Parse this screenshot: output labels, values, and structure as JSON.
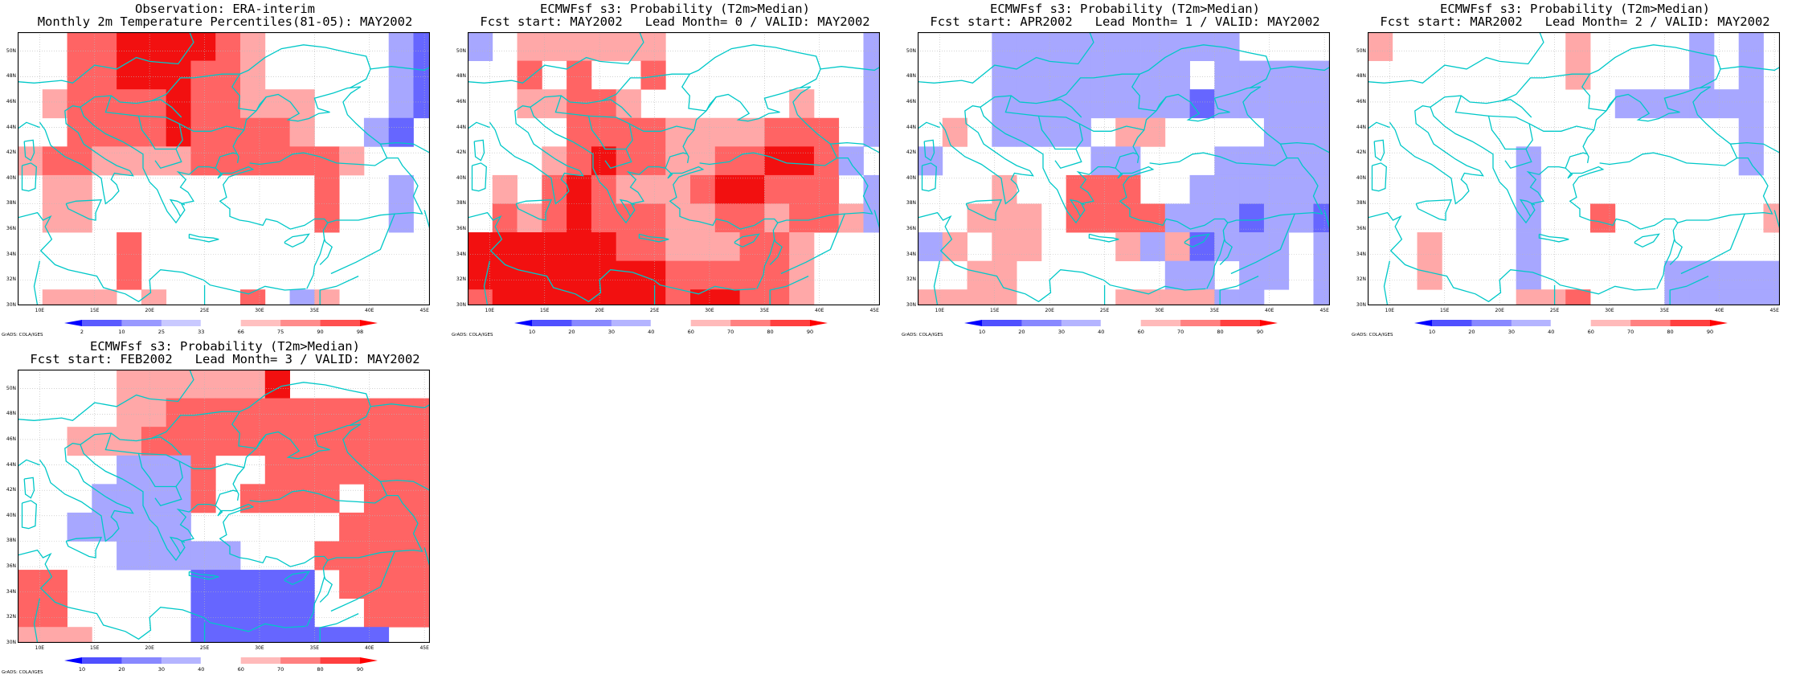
{
  "panels": [
    {
      "title1": "Observation: ERA-interim",
      "title2": "Monthly 2m Temperature Percentiles(81-05): MAY2002",
      "colorbar_labels": [
        "2",
        "10",
        "25",
        "33",
        "66",
        "75",
        "90",
        "98"
      ],
      "colorbar_colors": [
        "#0000ff",
        "#5a5aff",
        "#9999ff",
        "#c9c9ff",
        "#ffffff",
        "#ffc0c0",
        "#ff8c8c",
        "#ff5050",
        "#ff0000"
      ],
      "credit": "GrADS: COLA/IGES",
      "grid_rows": [
        "..rrRRRRrp.....bB",
        "..rrRRRrrp.....bB",
        ".prrrrRrrppp...bB",
        "..rrrrRrrrrp..bB.",
        "prrpppprrrrrrp...",
        ".pp.........r..b.",
        ".pp.........r..b.",
        "....r............",
        "....r............",
        ".ppp.p...r.bp....",
        ".ppp.p...pp......",
        ".rrrrr..rrrrp....",
        "..rrrr..rrrrp....",
        "pppppr...p.B.....",
        "........pp.......",
        "...........bB...."
      ]
    },
    {
      "title1": "ECMWFsf s3: Probability (T2m>Median)",
      "title2": "Fcst start: MAY2002   Lead Month= 0 / VALID: MAY2002",
      "colorbar_labels": [
        "10",
        "20",
        "30",
        "40",
        "60",
        "70",
        "80",
        "90"
      ],
      "colorbar_colors": [
        "#0000ff",
        "#5050ff",
        "#8888ff",
        "#b4b4ff",
        "#ffffff",
        "#ffbaba",
        "#ff8080",
        "#ff4040",
        "#ff0000"
      ],
      "credit": "GrADS: COLA/IGES",
      "grid_rows": [
        "b.pppppp........b",
        "..r.r..r........b",
        "..pprrp......p..b",
        "....rrrrpppprrr.b",
        "...prRrrpprrRRrb.",
        ".p.rRrppprRRrrr.b",
        ".rprRrrrpprrprrpb",
        "RRRRRRrrppprrp...",
        "RRRRRRRRrrrrrp...",
        "rRRRRRRRrRRrrp...",
        ".RRRRRRRRRrpp....",
        ".rRRRRRRRRRrrp...",
        "..RRRRRRRRRrrpp.b",
        "..pRRRRRRRRRr...b",
        "..rrpRRRRRRRrp...",
        "..........rr....."
      ]
    },
    {
      "title1": "ECMWFsf s3: Probability (T2m>Median)",
      "title2": "Fcst start: APR2002   Lead Month= 1 / VALID: MAY2002",
      "colorbar_labels": [
        "10",
        "20",
        "30",
        "40",
        "60",
        "70",
        "80",
        "90"
      ],
      "colorbar_colors": [
        "#0000ff",
        "#5050ff",
        "#8888ff",
        "#b4b4ff",
        "#ffffff",
        "#ffbaba",
        "#ff8080",
        "#ff4040",
        "#ff0000"
      ],
      "credit": "GrADS: COLA/IGES",
      "grid_rows": [
        "...bbbbbbbbbb....",
        "...bbbbbbbb.bbbbb",
        "...bbbbbbbbBbbbbb",
        ".p.bbbb.pp....bbb",
        "b......bb...bbbbb",
        "...p..rrr..bbbbbb",
        "..ppp.rrrrbbbBbbB",
        "bp.pp...pbpBbbb.b",
        "..pp......bb.bb.b",
        "pppp....ppppbb..b",
        ".ppppp..pppp....b",
        ".prrrrpppppp.b..b",
        ".prrrrppprrrp...b",
        ".prRRrrpppppp.b..",
        ".prRRRrppppppp.b.",
        "..rrrrrppppppp.bb"
      ]
    },
    {
      "title1": "ECMWFsf s3: Probability (T2m>Median)",
      "title2": "Fcst start: MAR2002   Lead Month= 2 / VALID: MAY2002",
      "colorbar_labels": [
        "10",
        "20",
        "30",
        "40",
        "60",
        "70",
        "80",
        "90"
      ],
      "colorbar_colors": [
        "#0000ff",
        "#5050ff",
        "#8888ff",
        "#b4b4ff",
        "#ffffff",
        "#ffbaba",
        "#ff8080",
        "#ff4040",
        "#ff0000"
      ],
      "credit": "GrADS: COLA/IGES",
      "grid_rows": [
        "p.......p....b.b.",
        "........p....b.b.",
        "..........bbbbbb.",
        "...............b.",
        "......b........b.",
        "......b..........",
        "......b..r......p",
        "..p...b..........",
        "..p...b.....bbbbb",
        "......ppr...bbbbb",
        "....pprr....bbbbb",
        ".b.bprrprrrrr....",
        "BBbbprppprRrr....",
        "BBbprrprrRRrr.b..",
        "....rprppppp.....",
        "..............b.b"
      ]
    },
    {
      "title1": "ECMWFsf s3: Probability (T2m>Median)",
      "title2": "Fcst start: FEB2002   Lead Month= 3 / VALID: MAY2002",
      "colorbar_labels": [
        "10",
        "20",
        "30",
        "40",
        "60",
        "70",
        "80",
        "90"
      ],
      "colorbar_colors": [
        "#0000ff",
        "#5050ff",
        "#8888ff",
        "#b4b4ff",
        "#ffffff",
        "#ffbaba",
        "#ff8080",
        "#ff4040",
        "#ff0000"
      ],
      "credit": "GrADS: COLA/IGES",
      "grid_rows": [
        "....ppppppR......",
        "....pprrrrrrrrrrr",
        "..ppprrrrrrrrrrrr",
        "....bbbr..rrrrrrr",
        "...bbbbr.rrrr.rrr",
        "..bbbbb......rrrr",
        "....bbbbb...rrrrr",
        "rr.....BBBBB.rrrr",
        "rr.....BBBBB..rrr",
        "ppp....BBBBBBBB..",
        "..ppp..BBBBBBBB..",
        "..ppp..ppp...bbb.",
        "..pp..pp.....bbb.",
        "......b..........",
        "....b.b.......p..",
        "..bb.........p..."
      ]
    }
  ],
  "map": {
    "lat_labels": [
      "50N",
      "48N",
      "46N",
      "44N",
      "42N",
      "40N",
      "38N",
      "36N",
      "34N",
      "32N",
      "30N"
    ],
    "lon_labels": [
      "10E",
      "15E",
      "20E",
      "25E",
      "30E",
      "35E",
      "40E",
      "45E"
    ],
    "coast_color": "#00c8c8",
    "grid_color": "#b8b8b8",
    "lat_range": [
      30,
      51.5
    ],
    "lon_range": [
      8,
      45.5
    ],
    "grid_origin": {
      "lon": 8,
      "lat": 51.5
    },
    "cell_size_deg": 2.25,
    "cell_palette": {
      "b": "#a7a7ff",
      "B": "#6666ff",
      "p": "#ffa8a8",
      "r": "#ff6464",
      "R": "#f21010"
    }
  }
}
